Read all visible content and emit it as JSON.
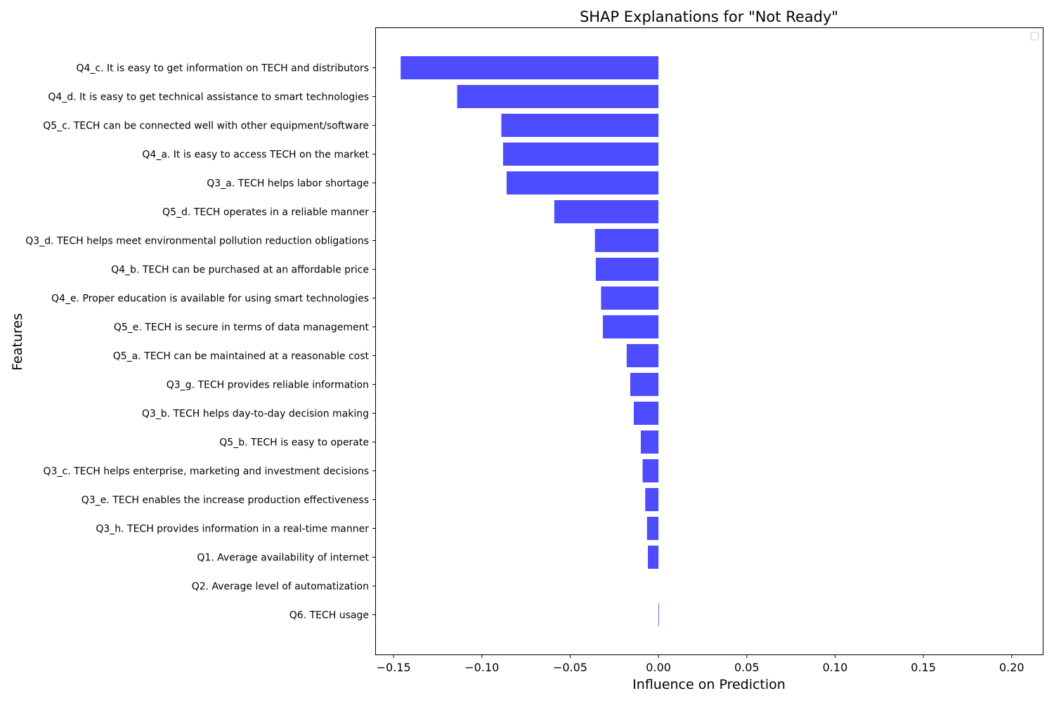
{
  "chart_data": {
    "type": "bar",
    "orientation": "horizontal",
    "title": "SHAP Explanations for \"Not Ready\"",
    "xlabel": "Influence on Prediction",
    "ylabel": "Features",
    "xlim": [
      -0.16,
      0.218
    ],
    "x_ticks": [
      -0.15,
      -0.1,
      -0.05,
      0.0,
      0.05,
      0.1,
      0.15,
      0.2
    ],
    "x_tick_labels": [
      "−0.15",
      "−0.10",
      "−0.05",
      "0.00",
      "0.05",
      "0.10",
      "0.15",
      "0.20"
    ],
    "bar_color": "#4d4dff",
    "grid": false,
    "legend": "top-right",
    "categories": [
      "Q4_c. It is easy to get information on TECH and distributors",
      "Q4_d. It is easy to get technical assistance to smart technologies",
      "Q5_c. TECH can be connected well with other equipment/software",
      "Q4_a. It is easy to access TECH on the market",
      "Q3_a. TECH helps labor shortage",
      "Q5_d. TECH operates in a reliable manner",
      "Q3_d. TECH helps meet environmental pollution reduction obligations",
      "Q4_b. TECH can be purchased at an affordable price",
      "Q4_e. Proper education is available for using smart technologies",
      "Q5_e. TECH is secure in terms of data management",
      "Q5_a. TECH can be maintained at a reasonable cost",
      "Q3_g. TECH provides reliable information",
      "Q3_b. TECH helps day-to-day decision making",
      "Q5_b. TECH is easy to operate",
      "Q3_c. TECH helps enterprise, marketing and investment decisions",
      "Q3_e. TECH enables the increase production effectiveness",
      "Q3_h. TECH provides information in a real-time manner",
      "Q1. Average availability of internet",
      "Q2. Average level of automatization",
      "Q6. TECH usage"
    ],
    "values": [
      -0.146,
      -0.114,
      -0.089,
      -0.088,
      -0.086,
      -0.059,
      -0.036,
      -0.0355,
      -0.0325,
      -0.0315,
      -0.018,
      -0.016,
      -0.014,
      -0.01,
      -0.009,
      -0.0075,
      -0.0065,
      -0.006,
      0.0,
      0.0003
    ]
  }
}
